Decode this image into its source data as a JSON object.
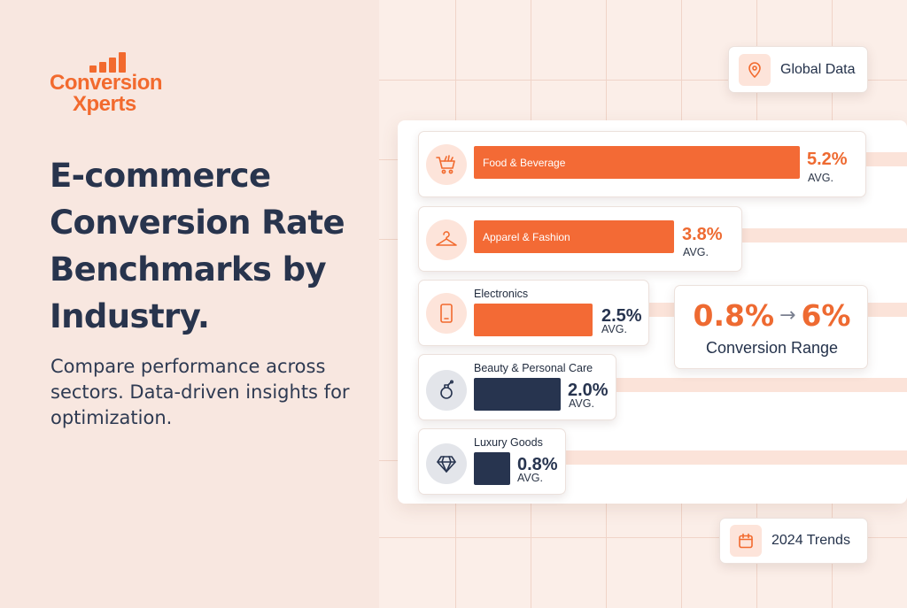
{
  "brand": {
    "line1": "Conversion",
    "line2": "Xperts",
    "accent": "#f26a2e"
  },
  "headline": [
    "E-commerce",
    "Conversion Rate",
    "Benchmarks by",
    "Industry."
  ],
  "subtitle": "Compare performance across sectors. Data-driven insights for optimization.",
  "badges": {
    "global": {
      "label": "Global Data",
      "icon": "location-pin-icon"
    },
    "trends": {
      "label": "2024 Trends",
      "icon": "calendar-icon"
    }
  },
  "range": {
    "low": "0.8%",
    "high": "6%",
    "arrow": "→",
    "label": "Conversion Range"
  },
  "chart_data": {
    "type": "bar",
    "orientation": "horizontal",
    "unit": "%",
    "categories": [
      "Food & Beverage",
      "Apparel & Fashion",
      "Electronics",
      "Beauty & Personal Care",
      "Luxury Goods"
    ],
    "values": [
      5.2,
      3.8,
      2.5,
      2.0,
      0.8
    ],
    "value_labels": [
      "5.2%",
      "3.8%",
      "2.5%",
      "2.0%",
      "0.8%"
    ],
    "suffix": "AVG.",
    "label_position": [
      "inside",
      "inside",
      "above",
      "above",
      "above"
    ],
    "colors": [
      "#f36a35",
      "#f36a35",
      "#f36a35",
      "#27344f",
      "#27344f"
    ],
    "icons": [
      "shopping-cart-icon",
      "hanger-icon",
      "tablet-icon",
      "perfume-bottle-icon",
      "diamond-icon"
    ]
  }
}
